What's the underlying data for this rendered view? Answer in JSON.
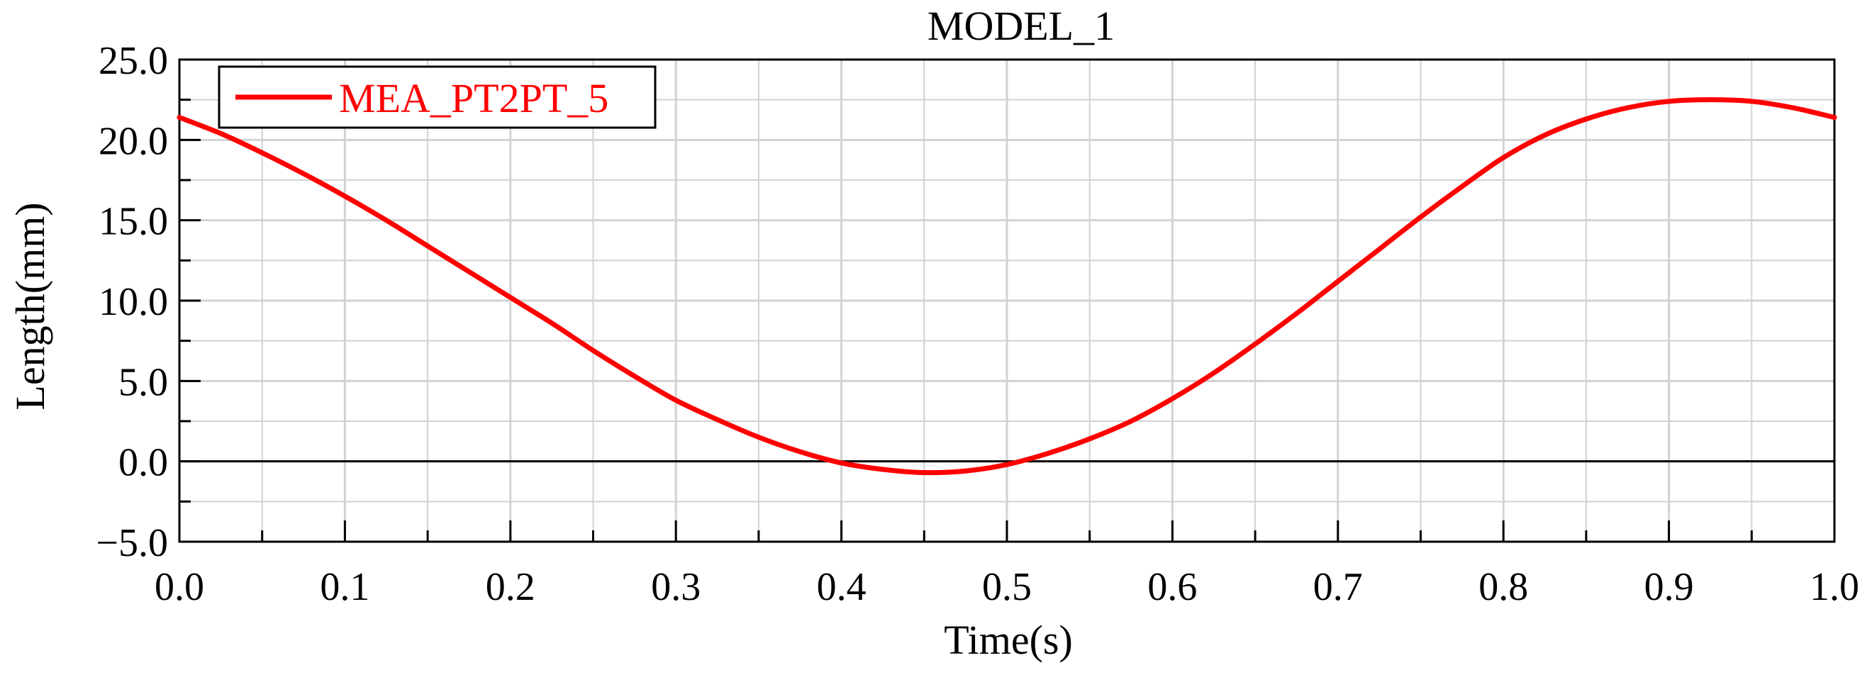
{
  "chart_data": {
    "type": "line",
    "title": "MODEL_1",
    "xlabel": "Time(s)",
    "ylabel": "Length(mm)",
    "xlim": [
      0.0,
      1.0
    ],
    "ylim": [
      -5.0,
      25.0
    ],
    "x_ticks": [
      0.0,
      0.1,
      0.2,
      0.3,
      0.4,
      0.5,
      0.6,
      0.7,
      0.8,
      0.9,
      1.0
    ],
    "x_tick_labels": [
      "0.0",
      "0.1",
      "0.2",
      "0.3",
      "0.4",
      "0.5",
      "0.6",
      "0.7",
      "0.8",
      "0.9",
      "1.0"
    ],
    "y_ticks": [
      -5.0,
      0.0,
      5.0,
      10.0,
      15.0,
      20.0,
      25.0
    ],
    "y_tick_labels": [
      "−5.0",
      "0.0",
      "5.0",
      "10.0",
      "15.0",
      "20.0",
      "25.0"
    ],
    "x_minor_step": 0.05,
    "y_minor_step": 2.5,
    "grid": true,
    "zero_line": true,
    "legend_position": "top-left",
    "series": [
      {
        "name": "MEA_PT2PT_5",
        "color": "#ff0000",
        "x": [
          0.0,
          0.025,
          0.05,
          0.075,
          0.1,
          0.125,
          0.15,
          0.175,
          0.2,
          0.225,
          0.25,
          0.275,
          0.3,
          0.325,
          0.35,
          0.375,
          0.4,
          0.425,
          0.45,
          0.475,
          0.5,
          0.525,
          0.55,
          0.575,
          0.6,
          0.625,
          0.65,
          0.675,
          0.7,
          0.725,
          0.75,
          0.775,
          0.8,
          0.825,
          0.85,
          0.875,
          0.9,
          0.925,
          0.95,
          0.975,
          1.0
        ],
        "values": [
          21.4,
          20.4,
          19.2,
          17.9,
          16.5,
          15.0,
          13.4,
          11.8,
          10.2,
          8.6,
          6.9,
          5.3,
          3.8,
          2.6,
          1.5,
          0.6,
          -0.1,
          -0.5,
          -0.7,
          -0.6,
          -0.2,
          0.5,
          1.4,
          2.5,
          3.9,
          5.5,
          7.3,
          9.2,
          11.2,
          13.2,
          15.2,
          17.1,
          18.9,
          20.3,
          21.3,
          22.0,
          22.4,
          22.5,
          22.4,
          22.0,
          21.4
        ]
      }
    ]
  }
}
